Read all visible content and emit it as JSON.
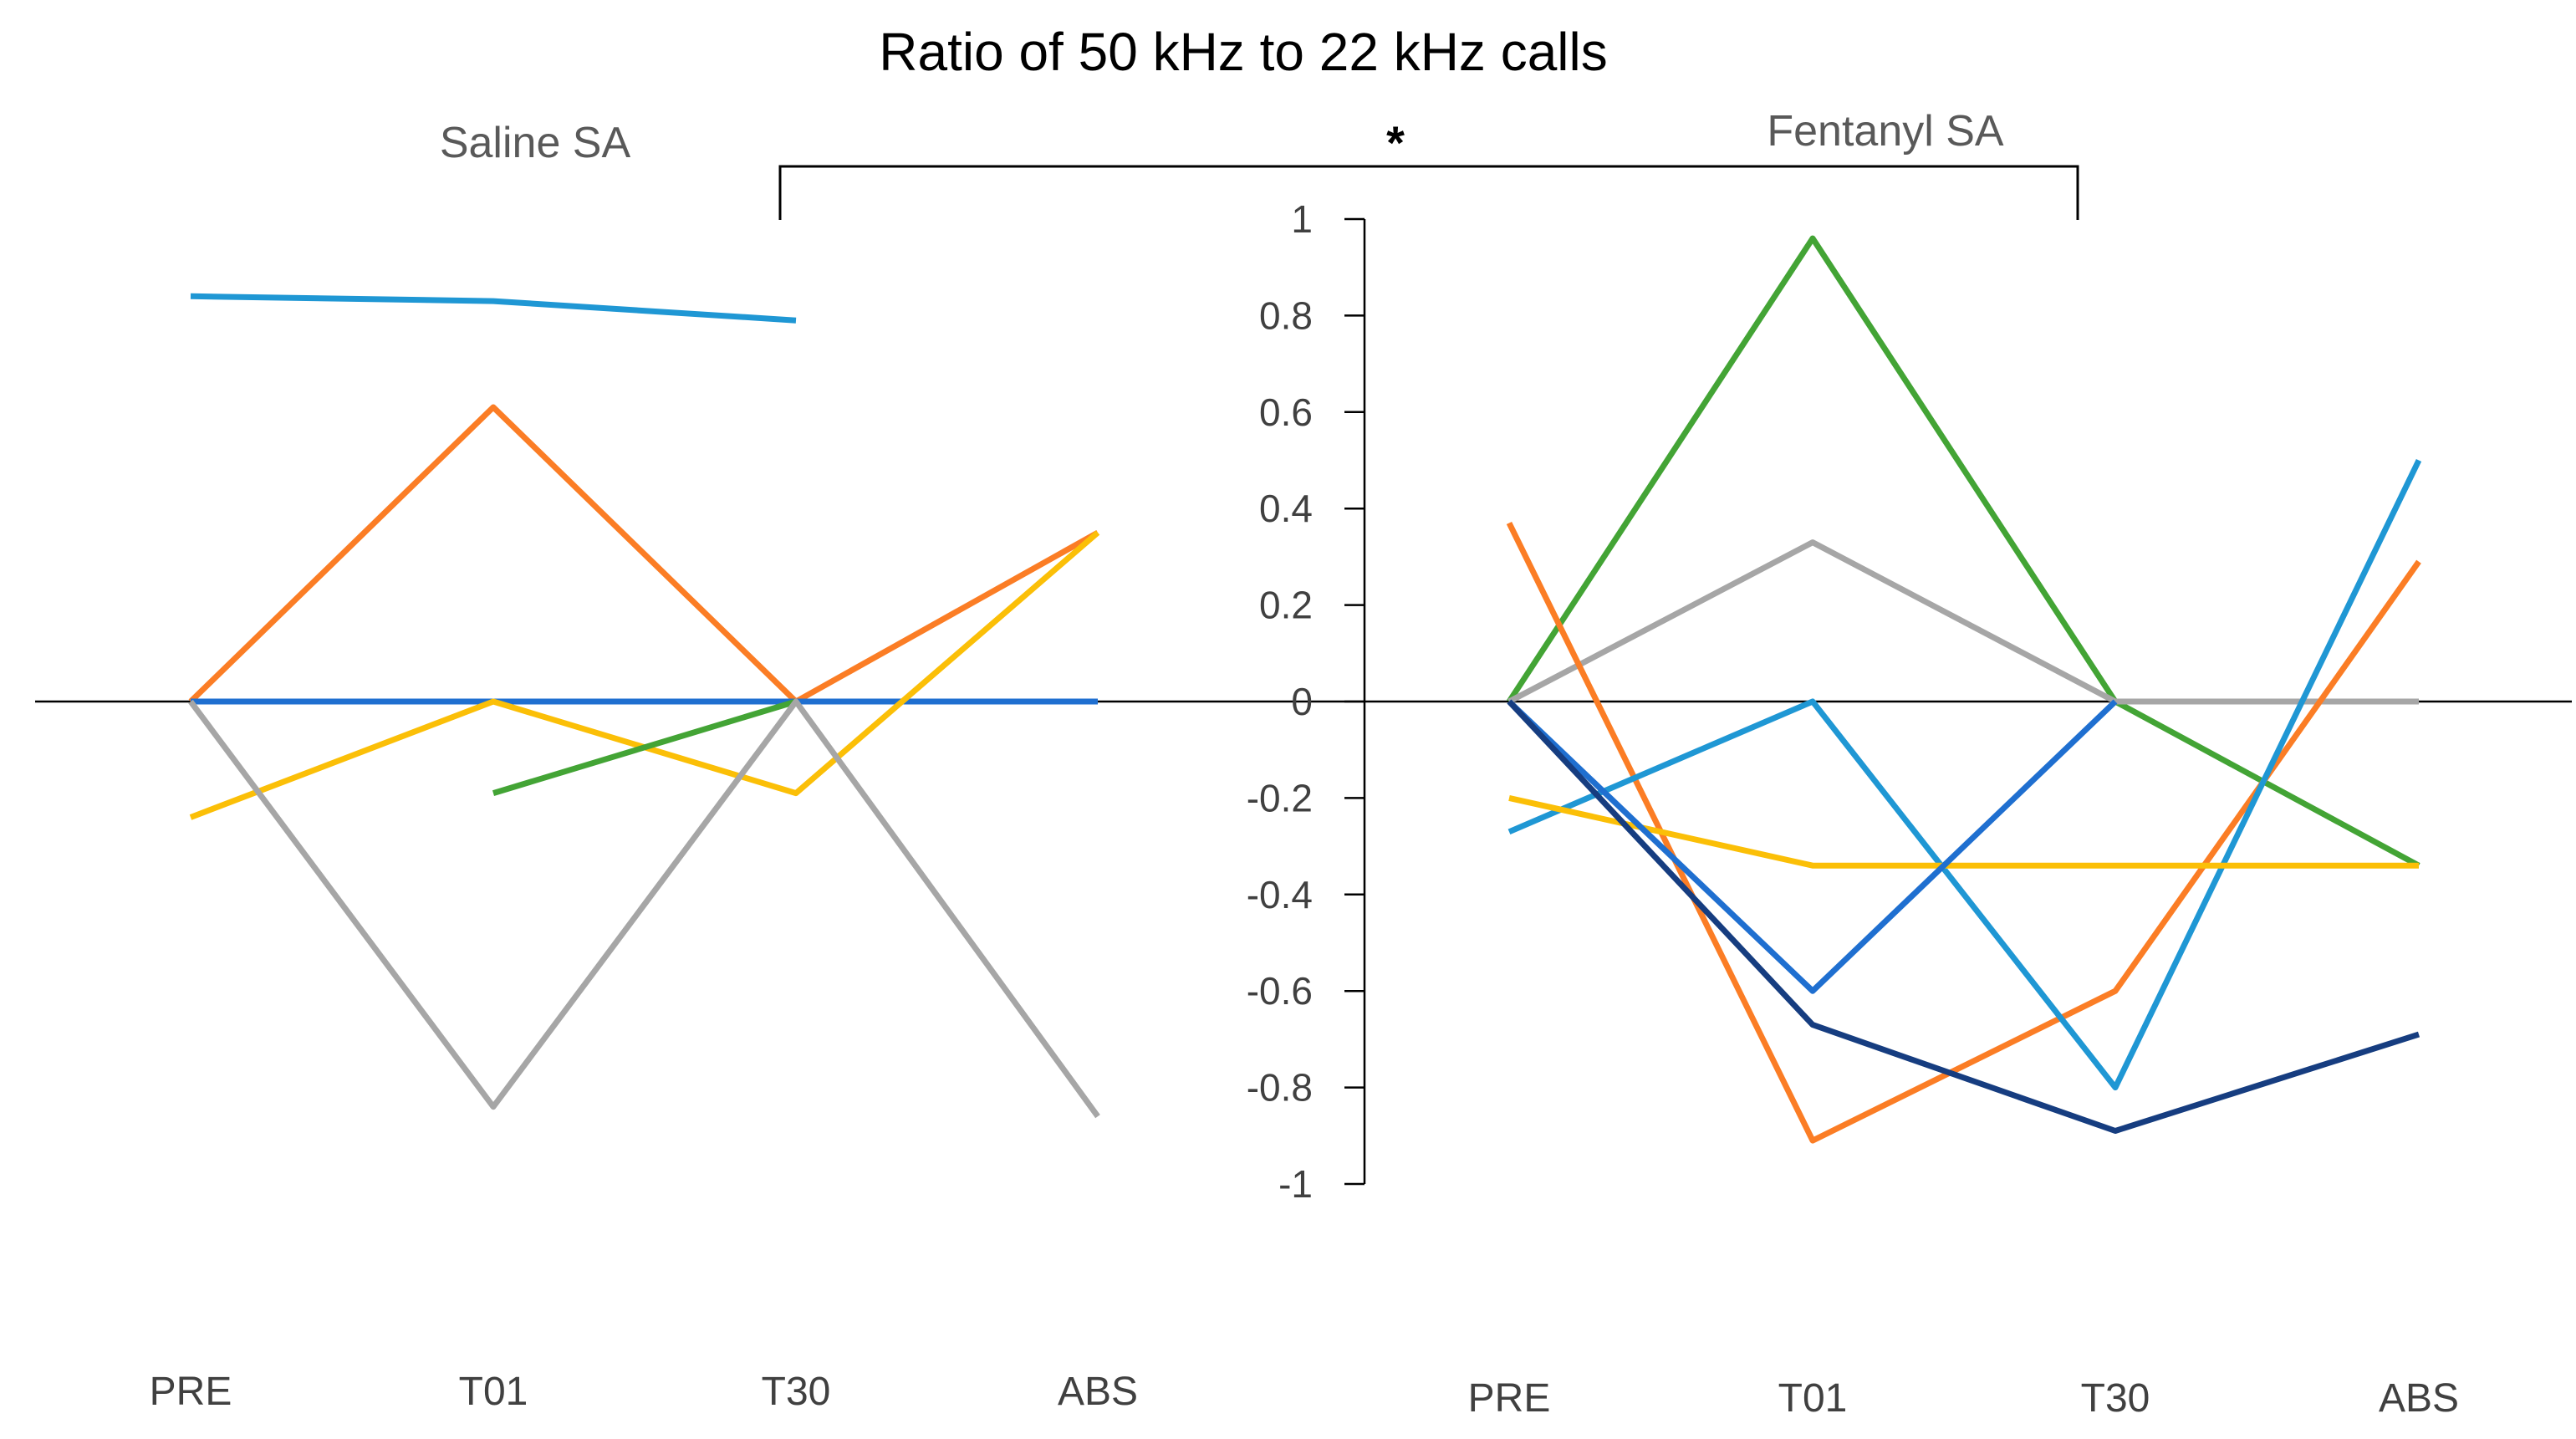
{
  "chart_data": {
    "type": "line",
    "title": "Ratio of 50 kHz to 22 kHz calls",
    "ylim": [
      -1,
      1
    ],
    "yticks": [
      "1",
      "0.8",
      "0.6",
      "0.4",
      "0.2",
      "0",
      "-0.2",
      "-0.4",
      "-0.6",
      "-0.8",
      "-1"
    ],
    "significance": "*",
    "panels": [
      {
        "name": "Saline SA",
        "categories": [
          "PRE",
          "T01",
          "T30",
          "ABS"
        ],
        "series": [
          {
            "color": "#1f97d4",
            "values": [
              0.84,
              0.83,
              0.79,
              null
            ]
          },
          {
            "color": "#fb7d25",
            "values": [
              0.0,
              0.61,
              0.0,
              0.35
            ]
          },
          {
            "color": "#1f6fd0",
            "values": [
              0.0,
              0.0,
              0.0,
              0.0
            ]
          },
          {
            "color": "#fbbf07",
            "values": [
              -0.24,
              0.0,
              -0.19,
              0.35
            ]
          },
          {
            "color": "#43a435",
            "values": [
              null,
              -0.19,
              0.0,
              null
            ]
          },
          {
            "color": "#a6a6a6",
            "values": [
              0.0,
              -0.84,
              0.0,
              -0.86
            ]
          }
        ]
      },
      {
        "name": "Fentanyl SA",
        "categories": [
          "PRE",
          "T01",
          "T30",
          "ABS"
        ],
        "series": [
          {
            "color": "#43a435",
            "values": [
              0.0,
              0.96,
              0.0,
              -0.34
            ]
          },
          {
            "color": "#a6a6a6",
            "values": [
              0.0,
              0.33,
              0.0,
              0.0
            ]
          },
          {
            "color": "#fb7d25",
            "values": [
              0.37,
              -0.91,
              -0.6,
              0.29
            ]
          },
          {
            "color": "#1f97d4",
            "values": [
              -0.27,
              0.0,
              -0.8,
              0.5
            ]
          },
          {
            "color": "#fbbf07",
            "values": [
              -0.2,
              -0.34,
              -0.34,
              -0.34
            ]
          },
          {
            "color": "#1f6fd0",
            "values": [
              0.0,
              -0.6,
              0.0,
              null
            ]
          },
          {
            "color": "#163d80",
            "values": [
              0.0,
              -0.67,
              -0.89,
              -0.69
            ]
          }
        ]
      }
    ]
  }
}
